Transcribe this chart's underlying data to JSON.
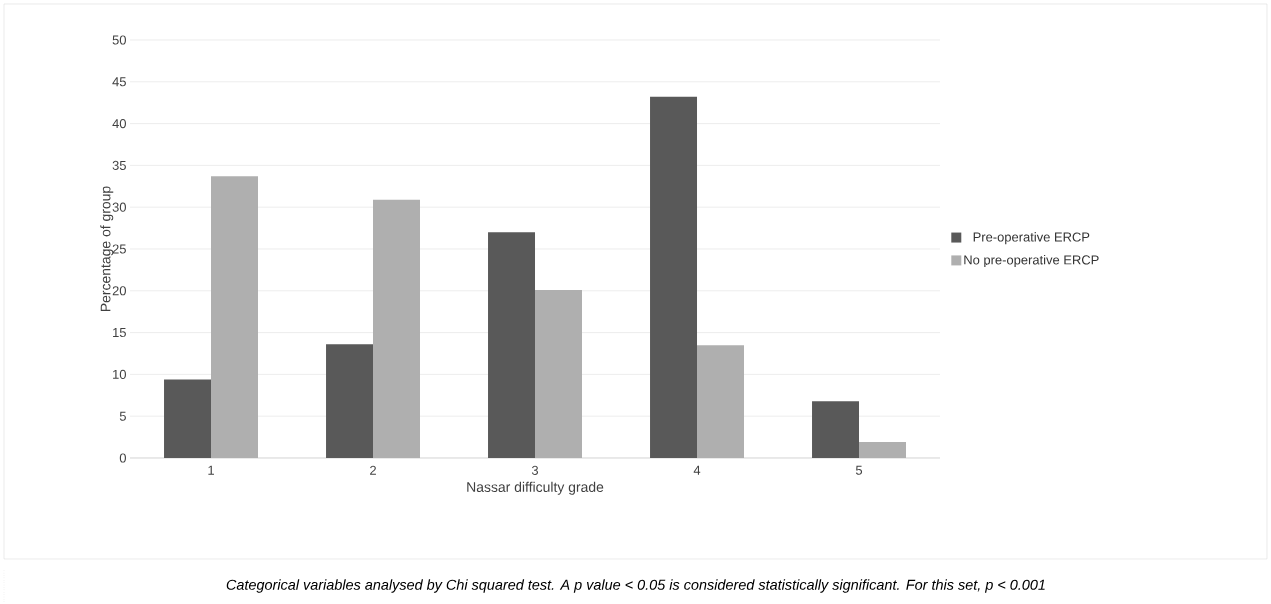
{
  "chart_data": {
    "type": "bar",
    "xlabel": "Nassar difficulty grade",
    "ylabel": "Percentage of group",
    "categories": [
      "1",
      "2",
      "3",
      "4",
      "5"
    ],
    "series": [
      {
        "name": "Pre-operative ERCP",
        "color": "#595959",
        "values": [
          9.4,
          13.6,
          27.0,
          43.2,
          6.8
        ]
      },
      {
        "name": "No pre-operative ERCP",
        "color": "#afafaf",
        "values": [
          33.7,
          30.9,
          20.1,
          13.5,
          1.9
        ]
      }
    ],
    "ylim": [
      0,
      50
    ],
    "yticks": [
      0,
      5,
      10,
      15,
      20,
      25,
      30,
      35,
      40,
      45,
      50
    ],
    "grid": "y",
    "legend": "right",
    "annotations": [
      "Categorical variables analysed by Chi squared test. A p value < 0.05 is considered statistically significant. For this set,  p < 0.001"
    ]
  }
}
